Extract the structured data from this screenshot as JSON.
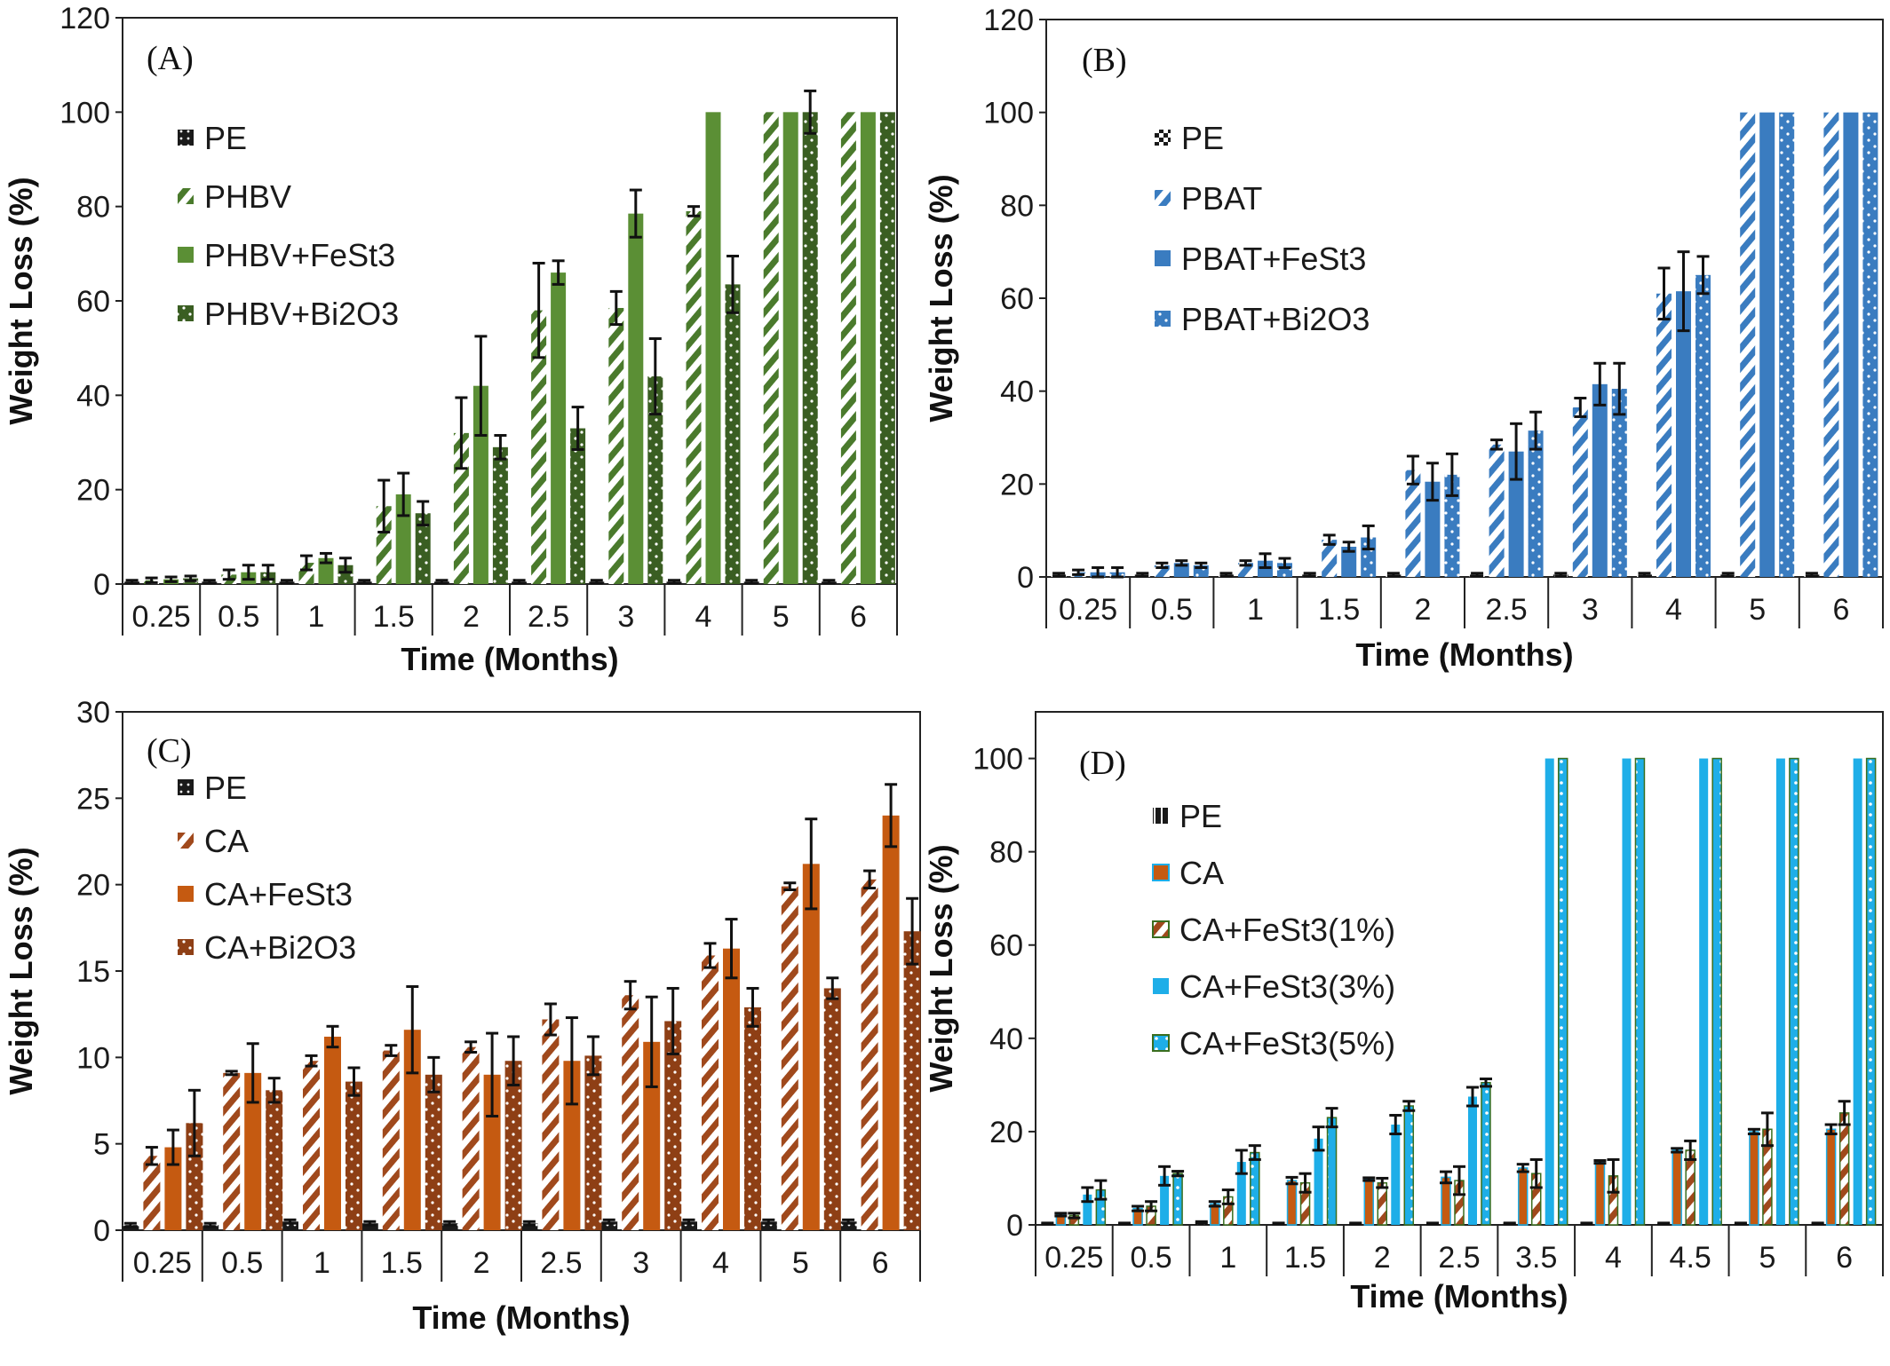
{
  "chart_data": [
    {
      "panel_label": "(A)",
      "type": "bar",
      "xlabel": "Time (Months)",
      "ylabel": "Weight Loss (%)",
      "ylim": [
        0,
        120
      ],
      "yticks": [
        0,
        20,
        40,
        60,
        80,
        100,
        120
      ],
      "grid": false,
      "legend_position": "upper-left",
      "categories": [
        "0.25",
        "0.5",
        "1",
        "1.5",
        "2",
        "2.5",
        "3",
        "4",
        "5",
        "6"
      ],
      "series": [
        {
          "name": "PE",
          "color": "#1a1a1a",
          "pattern": "dots-dark",
          "values": [
            0.5,
            0.5,
            0.5,
            0.5,
            0.5,
            0.5,
            0.5,
            0.5,
            0.5,
            0.5
          ],
          "errors": [
            0.3,
            0.3,
            0.3,
            0.3,
            0.3,
            0.3,
            0.3,
            0.3,
            0.3,
            0.3
          ]
        },
        {
          "name": "PHBV",
          "color": "#4a7a2c",
          "pattern": "diagonal",
          "values": [
            0.8,
            2.0,
            4.5,
            16.5,
            32,
            58,
            58.5,
            79,
            100,
            100
          ],
          "errors": [
            0.5,
            1,
            1.5,
            5.5,
            7.5,
            10,
            3.5,
            1,
            0,
            0
          ]
        },
        {
          "name": "PHBV+FeSt3",
          "color": "#5b8f35",
          "pattern": "solid",
          "values": [
            1.0,
            2.5,
            5.5,
            19,
            42,
            66,
            78.5,
            100,
            100,
            100
          ],
          "errors": [
            0.5,
            1.5,
            1,
            4.5,
            10.5,
            2.5,
            5,
            0,
            0,
            0
          ]
        },
        {
          "name": "PHBV+Bi2O3",
          "color": "#3a5e22",
          "pattern": "dots",
          "values": [
            1.2,
            2.5,
            4.0,
            15,
            29,
            33,
            44,
            63.5,
            100,
            100
          ],
          "errors": [
            0.5,
            1.5,
            1.5,
            2.5,
            2.5,
            4.5,
            8,
            6,
            4.5,
            0
          ]
        }
      ]
    },
    {
      "panel_label": "(B)",
      "type": "bar",
      "xlabel": "Time (Months)",
      "ylabel": "Weight Loss (%)",
      "ylim": [
        0,
        120
      ],
      "yticks": [
        0,
        20,
        40,
        60,
        80,
        100,
        120
      ],
      "grid": false,
      "legend_position": "upper-left",
      "categories": [
        "0.25",
        "0.5",
        "1",
        "1.5",
        "2",
        "2.5",
        "3",
        "4",
        "5",
        "6"
      ],
      "series": [
        {
          "name": "PE",
          "color": "#1a1a1a",
          "pattern": "checker",
          "values": [
            0.5,
            0.5,
            0.5,
            0.5,
            0.5,
            0.5,
            0.5,
            0.5,
            0.5,
            0.5
          ],
          "errors": [
            0.3,
            0.3,
            0.3,
            0.3,
            0.3,
            0.3,
            0.3,
            0.3,
            0.3,
            0.3
          ]
        },
        {
          "name": "PBAT",
          "color": "#3a7cc0",
          "pattern": "diagonal",
          "values": [
            1.0,
            2.5,
            3.0,
            8.0,
            23,
            28.5,
            36.5,
            61,
            100,
            100
          ],
          "errors": [
            0.5,
            0.5,
            0.5,
            1,
            3,
            1,
            2,
            5.5,
            0,
            0
          ]
        },
        {
          "name": "PBAT+FeSt3",
          "color": "#3a7cc0",
          "pattern": "solid",
          "values": [
            1.0,
            3.0,
            3.5,
            6.5,
            20.5,
            27,
            41.5,
            61.5,
            100,
            100
          ],
          "errors": [
            1,
            0.5,
            1.5,
            1,
            4,
            6,
            4.5,
            8.5,
            0,
            0
          ]
        },
        {
          "name": "PBAT+Bi2O3",
          "color": "#3a7cc0",
          "pattern": "dots",
          "values": [
            1.0,
            2.5,
            3.0,
            8.5,
            22,
            31.5,
            40.5,
            65,
            100,
            100
          ],
          "errors": [
            1,
            0.5,
            1,
            2.5,
            4.5,
            4,
            5.5,
            4,
            0,
            0
          ]
        }
      ]
    },
    {
      "panel_label": "(C)",
      "type": "bar",
      "xlabel": "Time (Months)",
      "ylabel": "Weight Loss (%)",
      "ylim": [
        0,
        30
      ],
      "yticks": [
        0,
        5,
        10,
        15,
        20,
        25,
        30
      ],
      "grid": false,
      "legend_position": "upper-left",
      "categories": [
        "0.25",
        "0.5",
        "1",
        "1.5",
        "2",
        "2.5",
        "3",
        "4",
        "5",
        "6"
      ],
      "series": [
        {
          "name": "PE",
          "color": "#1a1a1a",
          "pattern": "dots-dark",
          "values": [
            0.3,
            0.3,
            0.5,
            0.4,
            0.4,
            0.4,
            0.5,
            0.5,
            0.5,
            0.5
          ],
          "errors": [
            0.1,
            0.1,
            0.1,
            0.1,
            0.1,
            0.1,
            0.1,
            0.1,
            0.1,
            0.1
          ]
        },
        {
          "name": "CA",
          "color": "#a0491c",
          "pattern": "diagonal",
          "values": [
            4.3,
            9.1,
            9.8,
            10.4,
            10.6,
            12.2,
            13.6,
            15.9,
            19.9,
            20.3
          ],
          "errors": [
            0.5,
            0.1,
            0.3,
            0.3,
            0.3,
            0.9,
            0.8,
            0.7,
            0.2,
            0.5
          ]
        },
        {
          "name": "CA+FeSt3",
          "color": "#c55a11",
          "pattern": "solid",
          "values": [
            4.8,
            9.1,
            11.2,
            11.6,
            9.0,
            9.8,
            10.9,
            16.3,
            21.2,
            24.0
          ],
          "errors": [
            1,
            1.7,
            0.6,
            2.5,
            2.4,
            2.5,
            2.6,
            1.7,
            2.6,
            1.8
          ]
        },
        {
          "name": "CA+Bi2O3",
          "color": "#8e3f15",
          "pattern": "dots",
          "values": [
            6.2,
            8.1,
            8.6,
            9.0,
            9.8,
            10.1,
            12.1,
            12.9,
            14.0,
            17.3
          ],
          "errors": [
            1.9,
            0.7,
            0.8,
            1,
            1.4,
            1.1,
            1.9,
            1.1,
            0.6,
            1.9
          ]
        }
      ]
    },
    {
      "panel_label": "(D)",
      "type": "bar",
      "xlabel": "Time (Months)",
      "ylabel": "Weight Loss (%)",
      "ylim": [
        0,
        110
      ],
      "yticks": [
        0,
        20,
        40,
        60,
        80,
        100
      ],
      "grid": false,
      "legend_position": "upper-left",
      "categories": [
        "0.25",
        "0.5",
        "1",
        "1.5",
        "2",
        "2.5",
        "3.5",
        "4",
        "4.5",
        "5",
        "6"
      ],
      "series": [
        {
          "name": "PE",
          "color": "#1a1a1a",
          "pattern": "stripes-dark",
          "values": [
            0.3,
            0.3,
            0.5,
            0.3,
            0.3,
            0.3,
            0.3,
            0.3,
            0.3,
            0.3,
            0.3
          ],
          "errors": [
            0.1,
            0.1,
            0.2,
            0.1,
            0.1,
            0.1,
            0.1,
            0.1,
            0.1,
            0.1,
            0.1
          ]
        },
        {
          "name": "CA",
          "color": "#c55a11",
          "pattern": "solid-bordered",
          "values": [
            2.2,
            3.5,
            4.5,
            9.5,
            9.8,
            10.2,
            12.2,
            13.5,
            16.0,
            20.0,
            20.5
          ],
          "errors": [
            0.3,
            0.5,
            0.5,
            0.7,
            0.3,
            1.2,
            0.8,
            0.3,
            0.4,
            0.5,
            1.0
          ]
        },
        {
          "name": "CA+FeSt3(1%)",
          "color": "#a0491c",
          "pattern": "diagonal-green",
          "values": [
            2.0,
            4.0,
            6.0,
            9.0,
            9.0,
            9.5,
            11.0,
            10.5,
            16.0,
            20.5,
            24.0
          ],
          "errors": [
            0.5,
            1.0,
            1.5,
            2.0,
            1.0,
            3.0,
            3.0,
            3.5,
            2.0,
            3.5,
            2.5
          ]
        },
        {
          "name": "CA+FeSt3(3%)",
          "color": "#1eaee8",
          "pattern": "solid",
          "values": [
            6.5,
            10.5,
            13.5,
            18.5,
            21.5,
            27.5,
            100,
            100,
            100,
            100,
            100
          ],
          "errors": [
            1.5,
            2.0,
            2.5,
            2.5,
            2.0,
            2.0,
            0,
            0,
            0,
            0,
            0
          ]
        },
        {
          "name": "CA+FeSt3(5%)",
          "color": "#1eaee8",
          "pattern": "dots-green",
          "values": [
            7.5,
            11.0,
            15.5,
            23.0,
            25.5,
            30.5,
            100,
            100,
            100,
            100,
            100
          ],
          "errors": [
            2.0,
            0.5,
            1.5,
            2.0,
            1.0,
            0.8,
            0,
            0,
            0,
            0,
            0
          ]
        }
      ]
    }
  ]
}
